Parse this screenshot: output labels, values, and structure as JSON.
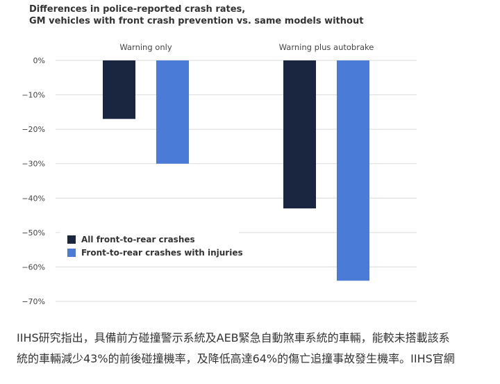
{
  "chart_data": {
    "type": "bar",
    "title": "Differences in police-reported crash rates,",
    "subtitle": "GM vehicles with front crash prevention vs. same models without",
    "categories": [
      "Warning only",
      "Warning plus autobrake"
    ],
    "series": [
      {
        "name": "All front-to-rear crashes",
        "color": "#1a2540",
        "values": [
          -17,
          -43
        ]
      },
      {
        "name": "Front-to-rear crashes with injuries",
        "color": "#4a7bd6",
        "values": [
          -30,
          -64
        ]
      }
    ],
    "y_ticks": [
      0,
      -10,
      -20,
      -30,
      -40,
      -50,
      -60,
      -70
    ],
    "y_tick_labels": [
      "0%",
      "−10%",
      "−20%",
      "−30%",
      "−40%",
      "−50%",
      "−60%",
      "−70%"
    ],
    "ylim": [
      -70,
      0
    ],
    "grid": true,
    "legend_position": "bottom-left"
  },
  "caption": {
    "line1": "IIHS研究指出，具備前方碰撞警示系統及AEB緊急自動煞車系統的車輛，能較未搭載該系",
    "line2": "統的車輛減少43%的前後碰撞機率，及降低高達64%的傷亡追撞事故發生機率。IIHS官網"
  }
}
